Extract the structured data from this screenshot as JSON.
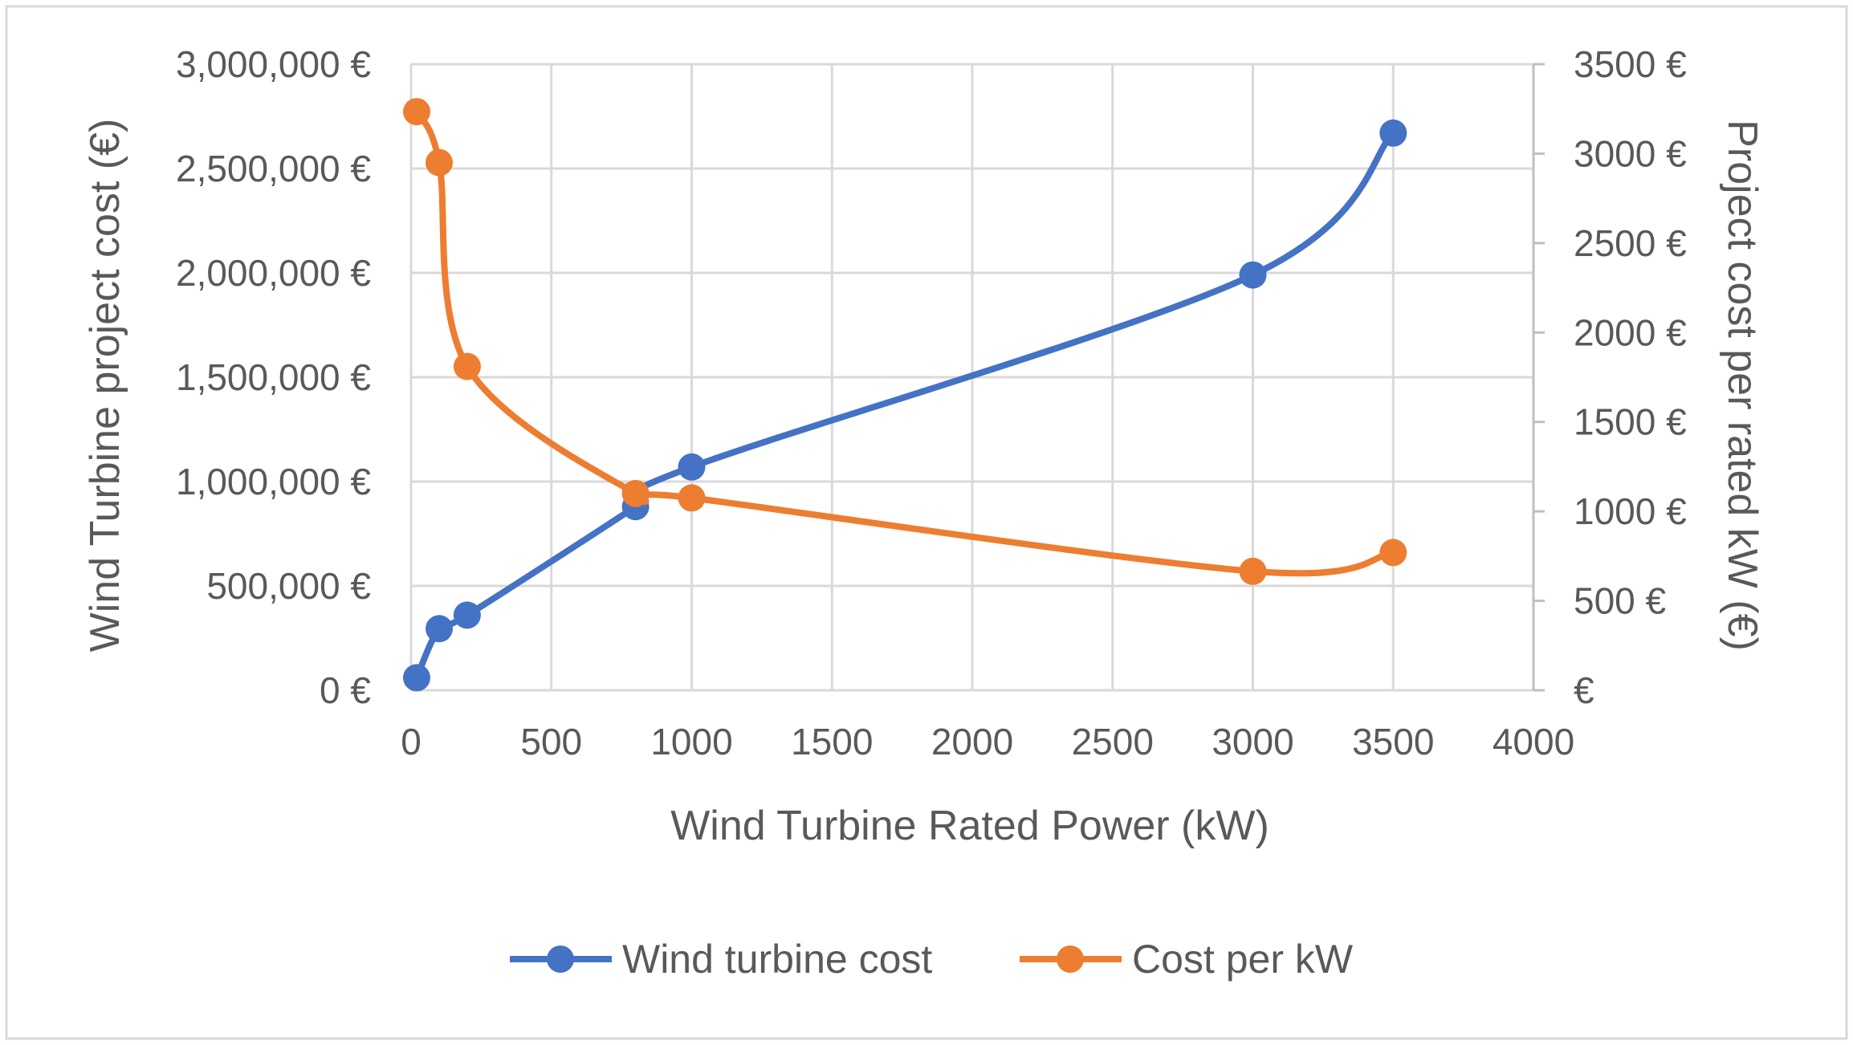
{
  "chart_data": {
    "type": "line",
    "title": "",
    "xlabel": "Wind Turbine Rated Power (kW)",
    "ylabel": "Wind Turbine project cost (€)",
    "y2label": "Project cost per rated kW (€)",
    "xlim": [
      0,
      4000
    ],
    "ylim": [
      0,
      3000000
    ],
    "y2lim": [
      0,
      3500
    ],
    "x_ticks": [
      "0",
      "500",
      "1000",
      "1500",
      "2000",
      "2500",
      "3000",
      "3500",
      "4000"
    ],
    "y_ticks": [
      "0 €",
      "500,000 €",
      "1,000,000 €",
      "1,500,000 €",
      "2,000,000 €",
      "2,500,000 €",
      "3,000,000 €"
    ],
    "y2_ticks": [
      "€",
      "500 €",
      "1000 €",
      "1500 €",
      "2000 €",
      "2500 €",
      "3000 €",
      "3500 €"
    ],
    "grid": true,
    "legend_position": "bottom",
    "series": [
      {
        "name": "Wind turbine cost",
        "axis": "left",
        "color": "#4472C4",
        "x": [
          20,
          100,
          200,
          800,
          1000,
          3000,
          3500
        ],
        "y": [
          60000,
          295000,
          360000,
          880000,
          1070000,
          1990000,
          2670000
        ]
      },
      {
        "name": "Cost per kW",
        "axis": "right",
        "color": "#ED7D31",
        "x": [
          20,
          100,
          200,
          800,
          1000,
          3000,
          3500
        ],
        "y": [
          3235,
          2950,
          1810,
          1100,
          1075,
          665,
          770
        ]
      }
    ]
  }
}
